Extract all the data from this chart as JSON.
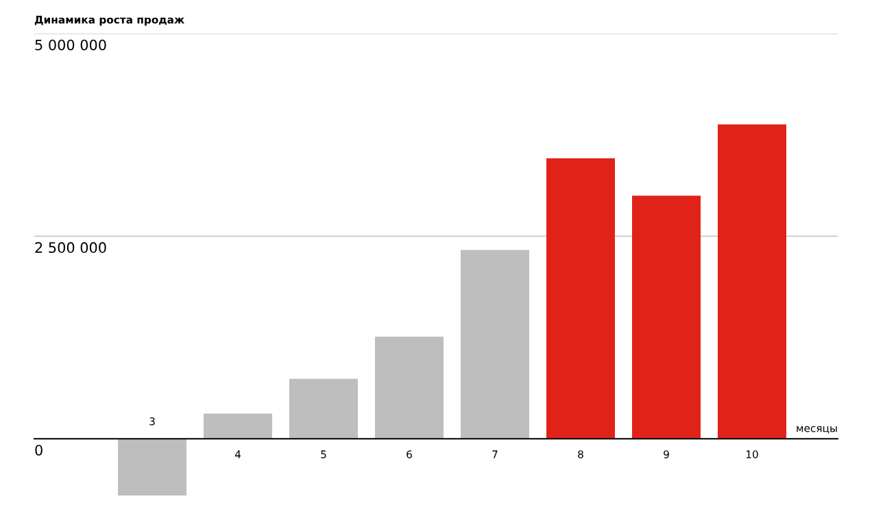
{
  "chart_data": {
    "type": "bar",
    "title": "Динамика роста продаж",
    "xlabel": "месяцы",
    "categories": [
      "3",
      "4",
      "5",
      "6",
      "7",
      "8",
      "9",
      "10"
    ],
    "values": [
      -700000,
      310000,
      740000,
      1260000,
      2330000,
      3460000,
      3000000,
      3880000
    ],
    "colors": [
      "#bebebe",
      "#bebebe",
      "#bebebe",
      "#bebebe",
      "#bebebe",
      "#e12219",
      "#e12219",
      "#e12219"
    ],
    "ylim": [
      -700000,
      5000000
    ],
    "yticks": [
      {
        "value": 0,
        "label": "0"
      },
      {
        "value": 2500000,
        "label": "2 500 000"
      },
      {
        "value": 5000000,
        "label": "5 000 000"
      }
    ],
    "grid": "y"
  }
}
